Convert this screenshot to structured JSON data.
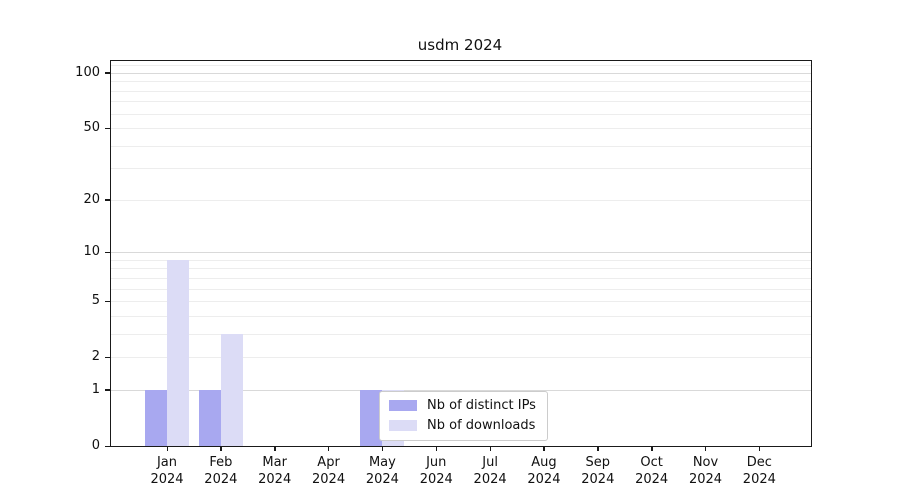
{
  "chart_data": {
    "type": "bar",
    "title": "usdm 2024",
    "categories": [
      "Jan 2024",
      "Feb 2024",
      "Mar 2024",
      "Apr 2024",
      "May 2024",
      "Jun 2024",
      "Jul 2024",
      "Aug 2024",
      "Sep 2024",
      "Oct 2024",
      "Nov 2024",
      "Dec 2024"
    ],
    "series": [
      {
        "name": "Nb of distinct IPs",
        "color": "#a8a8f0",
        "values": [
          1,
          1,
          0,
          0,
          1,
          0,
          0,
          0,
          0,
          0,
          0,
          0
        ]
      },
      {
        "name": "Nb of downloads",
        "color": "#dcdcf6",
        "values": [
          9,
          3,
          0,
          0,
          1,
          0,
          0,
          0,
          0,
          0,
          0,
          0
        ]
      }
    ],
    "xlabel": "",
    "ylabel": "",
    "yscale": "log1p",
    "ylim": [
      0,
      116
    ],
    "yticks": [
      0,
      1,
      2,
      5,
      10,
      20,
      50,
      100
    ],
    "major_gridlines": [
      1,
      10,
      100
    ],
    "minor_gridlines": [
      2,
      3,
      4,
      5,
      6,
      7,
      8,
      9,
      20,
      30,
      40,
      50,
      60,
      70,
      80,
      90,
      110
    ],
    "grid": true,
    "legend": {
      "position": "lower-center",
      "entries": [
        "Nb of distinct IPs",
        "Nb of downloads"
      ]
    },
    "colors": {
      "spine": "#1a1a1a",
      "grid_minor": "#ededed",
      "grid_major": "#d9d9d9",
      "background": "#ffffff"
    }
  }
}
